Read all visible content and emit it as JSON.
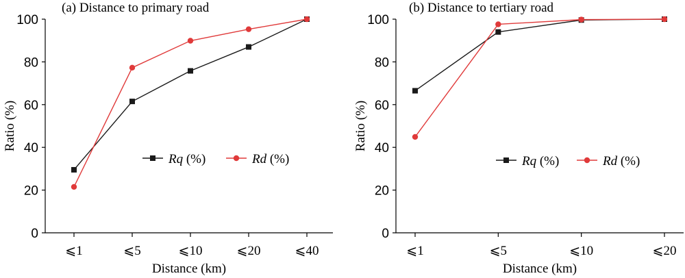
{
  "chart_data": [
    {
      "type": "line",
      "title": "(a) Distance to primary road",
      "xlabel": "Distance (km)",
      "ylabel": "Ratio (%)",
      "categories": [
        "⩽1",
        "⩽5",
        "⩽10",
        "⩽20",
        "⩽40"
      ],
      "ylim": [
        0,
        100
      ],
      "yticks": [
        "0",
        "20",
        "40",
        "60",
        "80",
        "100"
      ],
      "series": [
        {
          "name": "Rq",
          "unit": " (%)",
          "marker": "square",
          "color": "#1a1a1a",
          "values": [
            29.5,
            61.5,
            75.8,
            87,
            100
          ]
        },
        {
          "name": "Rd",
          "unit": " (%)",
          "marker": "circle",
          "color": "#e03a3a",
          "values": [
            21.5,
            77.3,
            89.9,
            95.3,
            100
          ]
        }
      ],
      "grid": false,
      "legend": "center-right, horizontal"
    },
    {
      "type": "line",
      "title": "(b) Distance to tertiary road",
      "xlabel": "Distance (km)",
      "ylabel": "Ratio (%)",
      "categories": [
        "⩽1",
        "⩽5",
        "⩽10",
        "⩽20"
      ],
      "ylim": [
        0,
        100
      ],
      "yticks": [
        "0",
        "20",
        "40",
        "60",
        "80",
        "100"
      ],
      "series": [
        {
          "name": "Rq",
          "unit": " (%)",
          "marker": "square",
          "color": "#1a1a1a",
          "values": [
            66.5,
            94,
            99.6,
            100
          ]
        },
        {
          "name": "Rd",
          "unit": " (%)",
          "marker": "circle",
          "color": "#e03a3a",
          "values": [
            44.9,
            97.6,
            99.8,
            100
          ]
        }
      ],
      "grid": false,
      "legend": "center-right, horizontal"
    }
  ]
}
